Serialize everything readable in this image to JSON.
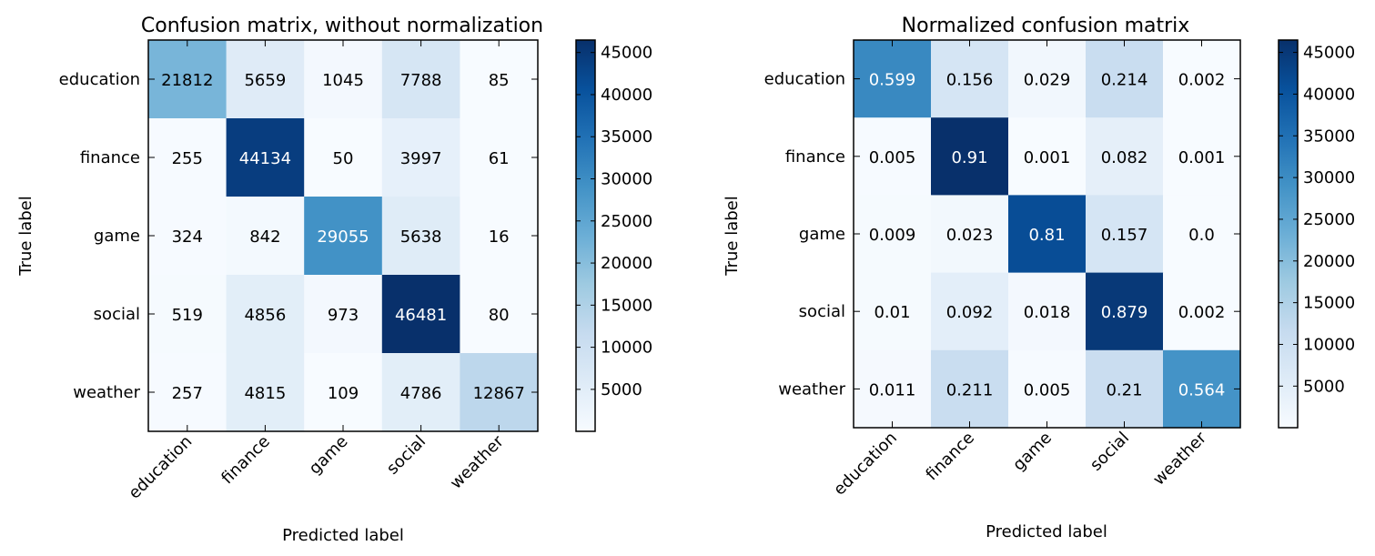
{
  "chart_data": [
    {
      "type": "heatmap",
      "title": "Confusion matrix, without normalization",
      "xlabel": "Predicted label",
      "ylabel": "True label",
      "x_categories": [
        "education",
        "finance",
        "game",
        "social",
        "weather"
      ],
      "y_categories": [
        "education",
        "finance",
        "game",
        "social",
        "weather"
      ],
      "values": [
        [
          21812,
          5659,
          1045,
          7788,
          85
        ],
        [
          255,
          44134,
          50,
          3997,
          61
        ],
        [
          324,
          842,
          29055,
          5638,
          16
        ],
        [
          519,
          4856,
          973,
          46481,
          80
        ],
        [
          257,
          4815,
          109,
          4786,
          12867
        ]
      ],
      "cell_labels": [
        [
          "21812",
          "5659",
          "1045",
          "7788",
          "85"
        ],
        [
          "255",
          "44134",
          "50",
          "3997",
          "61"
        ],
        [
          "324",
          "842",
          "29055",
          "5638",
          "16"
        ],
        [
          "519",
          "4856",
          "973",
          "46481",
          "80"
        ],
        [
          "257",
          "4815",
          "109",
          "4786",
          "12867"
        ]
      ],
      "colormap": "Blues",
      "colorbar": {
        "min": 16,
        "max": 46481,
        "ticks": [
          5000,
          10000,
          15000,
          20000,
          25000,
          30000,
          35000,
          40000,
          45000
        ],
        "tick_labels": [
          "5000",
          "10000",
          "15000",
          "20000",
          "25000",
          "30000",
          "35000",
          "40000",
          "45000"
        ]
      },
      "text_threshold": 23240
    },
    {
      "type": "heatmap",
      "title": "Normalized confusion matrix",
      "xlabel": "Predicted label",
      "ylabel": "True label",
      "x_categories": [
        "education",
        "finance",
        "game",
        "social",
        "weather"
      ],
      "y_categories": [
        "education",
        "finance",
        "game",
        "social",
        "weather"
      ],
      "values": [
        [
          0.599,
          0.156,
          0.029,
          0.214,
          0.002
        ],
        [
          0.005,
          0.91,
          0.001,
          0.082,
          0.001
        ],
        [
          0.009,
          0.023,
          0.81,
          0.157,
          0.0
        ],
        [
          0.01,
          0.092,
          0.018,
          0.879,
          0.002
        ],
        [
          0.011,
          0.211,
          0.005,
          0.21,
          0.564
        ]
      ],
      "cell_labels": [
        [
          "0.599",
          "0.156",
          "0.029",
          "0.214",
          "0.002"
        ],
        [
          "0.005",
          "0.91",
          "0.001",
          "0.082",
          "0.001"
        ],
        [
          "0.009",
          "0.023",
          "0.81",
          "0.157",
          "0.0"
        ],
        [
          "0.01",
          "0.092",
          "0.018",
          "0.879",
          "0.002"
        ],
        [
          "0.011",
          "0.211",
          "0.005",
          "0.21",
          "0.564"
        ]
      ],
      "colormap": "Blues",
      "colorbar": {
        "min": 16,
        "max": 46481,
        "ticks": [
          5000,
          10000,
          15000,
          20000,
          25000,
          30000,
          35000,
          40000,
          45000
        ],
        "tick_labels": [
          "5000",
          "10000",
          "15000",
          "20000",
          "25000",
          "30000",
          "35000",
          "40000",
          "45000"
        ]
      },
      "text_threshold": 23240
    }
  ]
}
